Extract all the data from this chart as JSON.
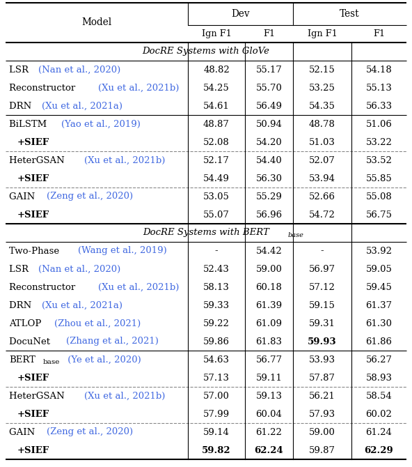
{
  "glove_ref_rows": [
    {
      "model_black": "LSR ",
      "model_blue": "(Nan et al., 2020)",
      "dev_ign": "48.82",
      "dev_f1": "55.17",
      "test_ign": "52.15",
      "test_f1": "54.18",
      "bold": []
    },
    {
      "model_black": "Reconstructor ",
      "model_blue": "(Xu et al., 2021b)",
      "dev_ign": "54.25",
      "dev_f1": "55.70",
      "test_ign": "53.25",
      "test_f1": "55.13",
      "bold": []
    },
    {
      "model_black": "DRN ",
      "model_blue": "(Xu et al., 2021a)",
      "dev_ign": "54.61",
      "dev_f1": "56.49",
      "test_ign": "54.35",
      "test_f1": "56.33",
      "bold": []
    }
  ],
  "glove_sief_groups": [
    {
      "base_black": "BiLSTM ",
      "base_blue": "(Yao et al., 2019)",
      "base_vals": [
        "48.87",
        "50.94",
        "48.78",
        "51.06"
      ],
      "base_bold": [],
      "sief_vals": [
        "52.08",
        "54.20",
        "51.03",
        "53.22"
      ],
      "sief_bold": [],
      "dashed_below": true
    },
    {
      "base_black": "HeterGSAN ",
      "base_blue": "(Xu et al., 2021b)",
      "base_vals": [
        "52.17",
        "54.40",
        "52.07",
        "53.52"
      ],
      "base_bold": [],
      "sief_vals": [
        "54.49",
        "56.30",
        "53.94",
        "55.85"
      ],
      "sief_bold": [],
      "dashed_below": true
    },
    {
      "base_black": "GAIN ",
      "base_blue": "(Zeng et al., 2020)",
      "base_vals": [
        "53.05",
        "55.29",
        "52.66",
        "55.08"
      ],
      "base_bold": [],
      "sief_vals": [
        "55.07",
        "56.96",
        "54.72",
        "56.75"
      ],
      "sief_bold": [],
      "dashed_below": false
    }
  ],
  "bert_ref_rows": [
    {
      "model_black": "Two-Phase ",
      "model_blue": "(Wang et al., 2019)",
      "dev_ign": "-",
      "dev_f1": "54.42",
      "test_ign": "-",
      "test_f1": "53.92",
      "bold": []
    },
    {
      "model_black": "LSR ",
      "model_blue": "(Nan et al., 2020)",
      "dev_ign": "52.43",
      "dev_f1": "59.00",
      "test_ign": "56.97",
      "test_f1": "59.05",
      "bold": []
    },
    {
      "model_black": "Reconstructor ",
      "model_blue": "(Xu et al., 2021b)",
      "dev_ign": "58.13",
      "dev_f1": "60.18",
      "test_ign": "57.12",
      "test_f1": "59.45",
      "bold": []
    },
    {
      "model_black": "DRN ",
      "model_blue": "(Xu et al., 2021a)",
      "dev_ign": "59.33",
      "dev_f1": "61.39",
      "test_ign": "59.15",
      "test_f1": "61.37",
      "bold": []
    },
    {
      "model_black": "ATLOP ",
      "model_blue": "(Zhou et al., 2021)",
      "dev_ign": "59.22",
      "dev_f1": "61.09",
      "test_ign": "59.31",
      "test_f1": "61.30",
      "bold": []
    },
    {
      "model_black": "DocuNet ",
      "model_blue": "(Zhang et al., 2021)",
      "dev_ign": "59.86",
      "dev_f1": "61.83",
      "test_ign": "59.93",
      "test_f1": "61.86",
      "bold": [
        2
      ]
    }
  ],
  "bert_sief_groups": [
    {
      "base_black": "BERT",
      "base_sub": "base",
      "base_blue": " (Ye et al., 2020)",
      "base_vals": [
        "54.63",
        "56.77",
        "53.93",
        "56.27"
      ],
      "base_bold": [],
      "sief_vals": [
        "57.13",
        "59.11",
        "57.87",
        "58.93"
      ],
      "sief_bold": [],
      "dashed_below": true
    },
    {
      "base_black": "HeterGSAN ",
      "base_blue": "(Xu et al., 2021b)",
      "base_vals": [
        "57.00",
        "59.13",
        "56.21",
        "58.54"
      ],
      "base_bold": [],
      "sief_vals": [
        "57.99",
        "60.04",
        "57.93",
        "60.02"
      ],
      "sief_bold": [],
      "dashed_below": true
    },
    {
      "base_black": "GAIN ",
      "base_blue": "(Zeng et al., 2020)",
      "base_vals": [
        "59.14",
        "61.22",
        "59.00",
        "61.24"
      ],
      "base_bold": [],
      "sief_vals": [
        "59.82",
        "62.24",
        "59.87",
        "62.29"
      ],
      "sief_bold": [
        0,
        1,
        3
      ],
      "dashed_below": false
    }
  ],
  "citation_color": "#4169E1",
  "bg_color": "#ffffff"
}
